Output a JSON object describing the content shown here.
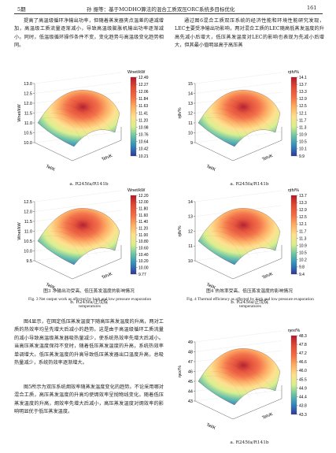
{
  "header": {
    "issue": "5期",
    "running_title": "孙  振等：基于MODHO算法的混合工质双压ORC系统多目标优化",
    "page": "161"
  },
  "left_column": {
    "paragraphs": [
      "提高了高温级循环净输出功率，但随着蒸发器夹点温差的递减增加，高温级工质流量逐渐减小，导致高温级膨胀机输出功率逐渐减小。同时，低温级循环操作条件不变，变化趋势与高温级变化趋势相同。",
      "图4显示，在固定低压蒸发温度下随高压蒸发温度的升高，两对工质的热效率均呈先增大后减小的趋势。这是由于高温级循环工质流量的减小导致高温级蒸发器吸热量减少，使系统热效率先增大后减小。当高压蒸发温度保持不变时，随着低压蒸发温度的升高，系统热效率单调增大。低压蒸发温度的升高导致低压蒸发器出口温度升高，总吸热量减少，系统热效率逐渐增大。",
      "图5所示为双压系统㶲效率随蒸发温度变化的趋势。不论采用哪对混合工质，高压蒸发温度的升高均使㶲效率呈抛物线变化。随着低压蒸发温度的升高，㶲效率先增大后减小，高压蒸发温度对㶲效率的影响明显优于低压蒸发温度。"
    ]
  },
  "right_column": {
    "paragraphs": [
      "通过图6混合工质双压系统的经济性能和环境性能研究发现，LEC主要受净输出功影响，两对混合工质的LEC随高低蒸发温度的升高先减小后增大，低压蒸发温度对LEC的影响也表现为先减小后增大，但其最小值明显高于高压蒸"
    ]
  },
  "figures": [
    {
      "colorbar_label": "Wnet/kW",
      "colorbar_ticks": [
        "12.49",
        "12.27",
        "12.06",
        "11.84",
        "11.63",
        "11.41",
        "11.20",
        "10.98",
        "10.76",
        "10.64",
        "10.42",
        "10.21"
      ],
      "z_label": "Wnet/kW",
      "z_ticks": [
        "13.0",
        "12.5",
        "12.0",
        "11.5",
        "11.0",
        "10.5",
        "10.0"
      ],
      "x_label": "Tel/K",
      "y_label": "Teh/K",
      "caption": "a. R245fa/R141b"
    },
    {
      "colorbar_label": "Wnet/kW",
      "colorbar_ticks": [
        "12.20",
        "12.00",
        "11.80",
        "11.60",
        "11.40",
        "11.20",
        "11.00",
        "10.80",
        "10.60",
        "10.40",
        "10.20",
        "10.00",
        "9.77"
      ],
      "z_label": "Wnet/kW",
      "z_ticks": [
        "12.5",
        "12.0",
        "11.5",
        "11.0",
        "10.5",
        "10.0",
        "9.5"
      ],
      "x_label": "Tel/K",
      "y_label": "Teh/K",
      "caption": "b. R245fa/正戊烷"
    },
    {
      "colorbar_label": "ηth/%",
      "colorbar_ticks": [
        "14.1",
        "13.7",
        "13.3",
        "12.9",
        "12.5",
        "12.1",
        "11.7",
        "11.3",
        "10.9",
        "10.5",
        "10.1",
        "9.9"
      ],
      "z_label": "ηth/%",
      "z_ticks": [
        "15",
        "14",
        "13",
        "12",
        "11",
        "10",
        "9"
      ],
      "x_label": "Tel/K",
      "y_label": "Teh/K",
      "caption": "a. R245fa/R141b"
    },
    {
      "colorbar_label": "ηth/%",
      "colorbar_ticks": [
        "13.7",
        "13.3",
        "12.9",
        "12.5",
        "12.1",
        "11.7",
        "11.3",
        "10.9",
        "10.5",
        "10.2",
        "9.8",
        "9.4"
      ],
      "z_label": "ηth/%",
      "z_ticks": [
        "14",
        "13",
        "12",
        "11",
        "10"
      ],
      "x_label": "Tel/K",
      "y_label": "Teh/K",
      "caption": "b. R245fa/正戊烷"
    },
    {
      "colorbar_label": "ηex/%",
      "colorbar_ticks": [
        "48.3",
        "47.8",
        "47.2",
        "46.6",
        "46.0",
        "45.5",
        "44.9",
        "44.4",
        "43.8",
        "43.3"
      ],
      "z_label": "ηex/%",
      "z_ticks": [
        "49",
        "48",
        "47",
        "46",
        "45",
        "44",
        "43"
      ],
      "x_label": "Tel/K",
      "y_label": "Teh/K",
      "caption": "a. R245fa/R141b"
    }
  ],
  "figure_captions": [
    {
      "cn": "图3  净输出功受高、低压蒸发温度的影响情况",
      "en": "Fig. 3   Net output work as affected by high and low pressure evaporation temperatures"
    },
    {
      "cn": "图4  热效率受高、低压蒸发温度的影响情况",
      "en": "Fig. 4   Thermal efficiency as affected by high and low pressure evaporation temperatures"
    }
  ]
}
